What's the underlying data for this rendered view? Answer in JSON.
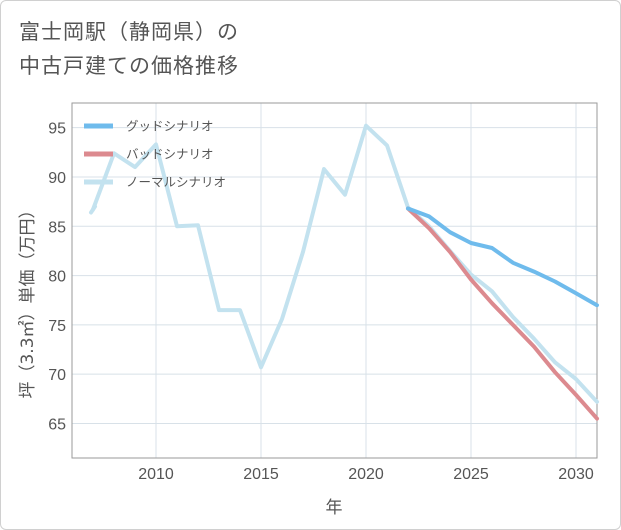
{
  "chart_data": {
    "type": "line",
    "title": "富士岡駅（静岡県）の中古戸建ての価格推移",
    "title_lines": [
      "富士岡駅（静岡県）の",
      "中古戸建ての価格推移"
    ],
    "xlabel": "年",
    "ylabel": "坪（3.3㎡）単価（万円）",
    "xlim": [
      2006.0,
      2031.0
    ],
    "ylim": [
      61.5,
      97.5
    ],
    "xticks": [
      2010,
      2015,
      2020,
      2025,
      2030
    ],
    "yticks": [
      65,
      70,
      75,
      80,
      85,
      90,
      95
    ],
    "legend_position": "top-left",
    "series": [
      {
        "name": "グッドシナリオ",
        "color": "#6fbbec",
        "x": [
          2022,
          2023,
          2024,
          2025,
          2026,
          2027,
          2028,
          2029,
          2030,
          2031
        ],
        "y": [
          86.8,
          86.0,
          84.4,
          83.3,
          82.8,
          81.3,
          80.4,
          79.4,
          78.2,
          77.0
        ]
      },
      {
        "name": "バッドシナリオ",
        "color": "#dc8a8f",
        "x": [
          2022,
          2023,
          2024,
          2025,
          2026,
          2027,
          2028,
          2029,
          2030,
          2031
        ],
        "y": [
          86.8,
          84.8,
          82.4,
          79.6,
          77.2,
          75.0,
          72.8,
          70.2,
          67.9,
          65.5
        ]
      },
      {
        "name": "ノーマルシナリオ",
        "color": "#c3e2ef",
        "x": [
          2007,
          2008,
          2009,
          2010,
          2011,
          2012,
          2013,
          2014,
          2015,
          2016,
          2017,
          2018,
          2019,
          2020,
          2021,
          2022,
          2023,
          2024,
          2025,
          2026,
          2027,
          2028,
          2029,
          2030,
          2031
        ],
        "y": [
          86.7,
          92.4,
          91.0,
          93.3,
          85.0,
          85.1,
          76.5,
          76.5,
          70.7,
          75.6,
          82.4,
          90.8,
          88.2,
          95.2,
          93.2,
          86.9,
          85.0,
          82.5,
          80.1,
          78.4,
          75.8,
          73.6,
          71.2,
          69.5,
          67.2
        ]
      }
    ]
  }
}
